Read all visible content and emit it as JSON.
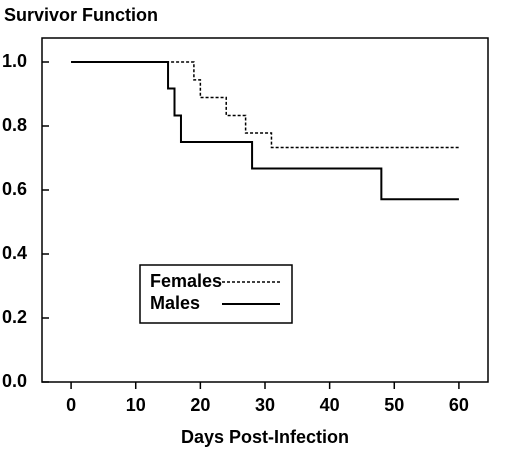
{
  "chart_data": {
    "type": "step",
    "title": "Survivor Function",
    "x_label": "Days Post-Infection",
    "xlim": [
      -4.5,
      64.5
    ],
    "xticks": [
      0,
      10,
      20,
      30,
      40,
      50,
      60
    ],
    "ylim": [
      0,
      1.075
    ],
    "yticks": [
      {
        "value": 0,
        "label": "0.0"
      },
      {
        "value": 0.2,
        "label": "0.2"
      },
      {
        "value": 0.4,
        "label": "0.4"
      },
      {
        "value": 0.6,
        "label": "0.6"
      },
      {
        "value": 0.8,
        "label": "0.8"
      },
      {
        "value": 1,
        "label": "1.0"
      }
    ],
    "legend": "lower left",
    "series": [
      {
        "name": "Females",
        "color": "#000000",
        "dash": "dotted",
        "x": [
          0,
          19,
          20,
          24,
          27,
          31,
          60
        ],
        "values": [
          1,
          0.944,
          0.889,
          0.833,
          0.778,
          0.733,
          0.733
        ]
      },
      {
        "name": "Males",
        "color": "#000000",
        "dash": "solid",
        "x": [
          0,
          15,
          16,
          17,
          28,
          48,
          60
        ],
        "values": [
          1,
          0.917,
          0.833,
          0.75,
          0.667,
          0.571,
          0.571
        ]
      }
    ]
  }
}
